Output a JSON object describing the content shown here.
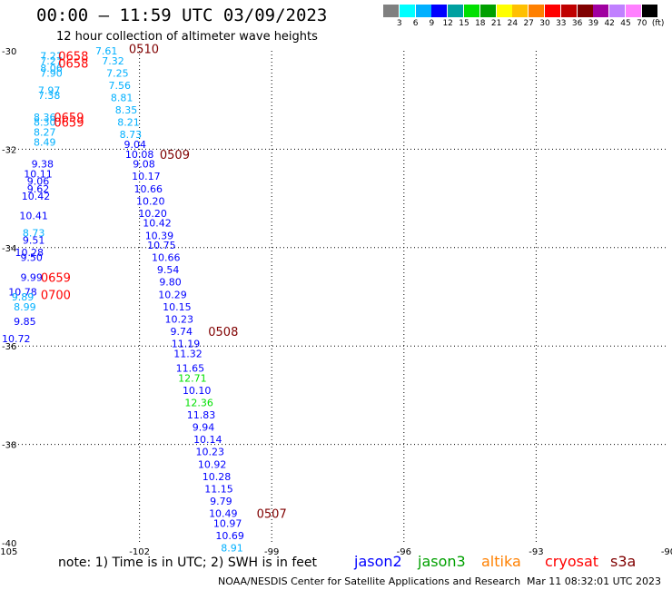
{
  "header": {
    "title": "00:00 – 11:59 UTC 03/09/2023",
    "subtitle": "12 hour collection of altimeter wave heights"
  },
  "legend": {
    "colors": [
      "#808080",
      "#00ffff",
      "#00b0ff",
      "#0000ff",
      "#00a0a0",
      "#00e000",
      "#00a000",
      "#ffff00",
      "#ffc000",
      "#ff8000",
      "#ff0000",
      "#c00000",
      "#800000",
      "#a000a0",
      "#c080ff",
      "#ff80ff",
      "#000000"
    ],
    "labels": [
      "3",
      "6",
      "9",
      "12",
      "15",
      "18",
      "21",
      "24",
      "27",
      "30",
      "33",
      "36",
      "39",
      "42",
      "45",
      "70",
      "(ft)"
    ]
  },
  "note": "note: 1) Time is in UTC; 2) SWH is in feet",
  "satellites": [
    {
      "name": "jason2",
      "color": "#0000ff"
    },
    {
      "name": "jason3",
      "color": "#00a000"
    },
    {
      "name": "altika",
      "color": "#ff8000"
    },
    {
      "name": "cryosat",
      "color": "#ff0000"
    },
    {
      "name": "s3a",
      "color": "#800000"
    }
  ],
  "footer": {
    "credit": "NOAA/NESDIS Center for Satellite Applications and Research",
    "timestamp": "Mar 11 08:32:01 UTC 2023"
  },
  "chart_data": {
    "type": "scatter",
    "xlim": [
      -105,
      -90
    ],
    "ylim": [
      -40,
      -30
    ],
    "x_ticks": [
      "-105",
      "-102",
      "-99",
      "-96",
      "-93",
      "-90"
    ],
    "y_ticks": [
      "-30",
      "-32",
      "-34",
      "-36",
      "-38",
      "-40"
    ],
    "grid": true,
    "points": [
      {
        "x": -104.0,
        "y": -30.1,
        "label": "7.21",
        "color": "#00b0ff"
      },
      {
        "x": -104.0,
        "y": -30.2,
        "label": "7.27",
        "color": "#00b0ff"
      },
      {
        "x": -104.0,
        "y": -30.35,
        "label": "8.06",
        "color": "#00b0ff"
      },
      {
        "x": -104.0,
        "y": -30.45,
        "label": "7.90",
        "color": "#00b0ff"
      },
      {
        "x": -104.05,
        "y": -30.8,
        "label": "7.97",
        "color": "#00b0ff"
      },
      {
        "x": -104.05,
        "y": -30.9,
        "label": "7.38",
        "color": "#00b0ff"
      },
      {
        "x": -104.15,
        "y": -31.35,
        "label": "8.36",
        "color": "#00b0ff"
      },
      {
        "x": -104.15,
        "y": -31.45,
        "label": "8.30",
        "color": "#00b0ff"
      },
      {
        "x": -104.15,
        "y": -31.65,
        "label": "8.27",
        "color": "#00b0ff"
      },
      {
        "x": -104.15,
        "y": -31.85,
        "label": "8.49",
        "color": "#00b0ff"
      },
      {
        "x": -104.2,
        "y": -32.3,
        "label": "9.38",
        "color": "#0000ff"
      },
      {
        "x": -104.3,
        "y": -32.5,
        "label": "10.11",
        "color": "#0000ff"
      },
      {
        "x": -104.3,
        "y": -32.65,
        "label": "9.06",
        "color": "#0000ff"
      },
      {
        "x": -104.3,
        "y": -32.8,
        "label": "9.62",
        "color": "#0000ff"
      },
      {
        "x": -104.35,
        "y": -32.95,
        "label": "10.42",
        "color": "#0000ff"
      },
      {
        "x": -104.4,
        "y": -33.35,
        "label": "10.41",
        "color": "#0000ff"
      },
      {
        "x": -104.4,
        "y": -33.7,
        "label": "8.73",
        "color": "#00b0ff"
      },
      {
        "x": -104.4,
        "y": -33.85,
        "label": "9.51",
        "color": "#0000ff"
      },
      {
        "x": -104.5,
        "y": -34.1,
        "label": "10.28",
        "color": "#0000ff"
      },
      {
        "x": -104.45,
        "y": -34.2,
        "label": "9.50",
        "color": "#0000ff"
      },
      {
        "x": -104.45,
        "y": -34.6,
        "label": "9.99",
        "color": "#0000ff"
      },
      {
        "x": -104.65,
        "y": -34.9,
        "label": "10.78",
        "color": "#0000ff"
      },
      {
        "x": -104.65,
        "y": -35.0,
        "label": "9.89",
        "color": "#00b0ff"
      },
      {
        "x": -104.6,
        "y": -35.2,
        "label": "8.99",
        "color": "#00b0ff"
      },
      {
        "x": -104.6,
        "y": -35.5,
        "label": "9.85",
        "color": "#0000ff"
      },
      {
        "x": -104.8,
        "y": -35.85,
        "label": "10.72",
        "color": "#0000ff"
      },
      {
        "x": -102.75,
        "y": -30.0,
        "label": "7.61",
        "color": "#00b0ff"
      },
      {
        "x": -102.6,
        "y": -30.2,
        "label": "7.32",
        "color": "#00b0ff"
      },
      {
        "x": -102.5,
        "y": -30.45,
        "label": "7.25",
        "color": "#00b0ff"
      },
      {
        "x": -102.45,
        "y": -30.7,
        "label": "7.56",
        "color": "#00b0ff"
      },
      {
        "x": -102.4,
        "y": -30.95,
        "label": "8.81",
        "color": "#00b0ff"
      },
      {
        "x": -102.3,
        "y": -31.2,
        "label": "8.35",
        "color": "#00b0ff"
      },
      {
        "x": -102.25,
        "y": -31.45,
        "label": "8.21",
        "color": "#00b0ff"
      },
      {
        "x": -102.2,
        "y": -31.7,
        "label": "8.73",
        "color": "#00b0ff"
      },
      {
        "x": -102.1,
        "y": -31.9,
        "label": "9.04",
        "color": "#0000ff"
      },
      {
        "x": -102.0,
        "y": -32.1,
        "label": "10.08",
        "color": "#0000ff"
      },
      {
        "x": -101.9,
        "y": -32.3,
        "label": "9.08",
        "color": "#0000ff"
      },
      {
        "x": -101.85,
        "y": -32.55,
        "label": "10.17",
        "color": "#0000ff"
      },
      {
        "x": -101.8,
        "y": -32.8,
        "label": "10.66",
        "color": "#0000ff"
      },
      {
        "x": -101.75,
        "y": -33.05,
        "label": "10.20",
        "color": "#0000ff"
      },
      {
        "x": -101.7,
        "y": -33.3,
        "label": "10.20",
        "color": "#0000ff"
      },
      {
        "x": -101.6,
        "y": -33.5,
        "label": "10.42",
        "color": "#0000ff"
      },
      {
        "x": -101.55,
        "y": -33.75,
        "label": "10.39",
        "color": "#0000ff"
      },
      {
        "x": -101.5,
        "y": -33.95,
        "label": "10.75",
        "color": "#0000ff"
      },
      {
        "x": -101.4,
        "y": -34.2,
        "label": "10.66",
        "color": "#0000ff"
      },
      {
        "x": -101.35,
        "y": -34.45,
        "label": "9.54",
        "color": "#0000ff"
      },
      {
        "x": -101.3,
        "y": -34.7,
        "label": "9.80",
        "color": "#0000ff"
      },
      {
        "x": -101.25,
        "y": -34.95,
        "label": "10.29",
        "color": "#0000ff"
      },
      {
        "x": -101.15,
        "y": -35.2,
        "label": "10.15",
        "color": "#0000ff"
      },
      {
        "x": -101.1,
        "y": -35.45,
        "label": "10.23",
        "color": "#0000ff"
      },
      {
        "x": -101.05,
        "y": -35.7,
        "label": "9.74",
        "color": "#0000ff"
      },
      {
        "x": -100.95,
        "y": -35.95,
        "label": "11.19",
        "color": "#0000ff"
      },
      {
        "x": -100.9,
        "y": -36.15,
        "label": "11.32",
        "color": "#0000ff"
      },
      {
        "x": -100.85,
        "y": -36.45,
        "label": "11.65",
        "color": "#0000ff"
      },
      {
        "x": -100.8,
        "y": -36.65,
        "label": "12.71",
        "color": "#00e000"
      },
      {
        "x": -100.7,
        "y": -36.9,
        "label": "10.10",
        "color": "#0000ff"
      },
      {
        "x": -100.65,
        "y": -37.15,
        "label": "12.36",
        "color": "#00e000"
      },
      {
        "x": -100.6,
        "y": -37.4,
        "label": "11.83",
        "color": "#0000ff"
      },
      {
        "x": -100.55,
        "y": -37.65,
        "label": "9.94",
        "color": "#0000ff"
      },
      {
        "x": -100.45,
        "y": -37.9,
        "label": "10.14",
        "color": "#0000ff"
      },
      {
        "x": -100.4,
        "y": -38.15,
        "label": "10.23",
        "color": "#0000ff"
      },
      {
        "x": -100.35,
        "y": -38.4,
        "label": "10.92",
        "color": "#0000ff"
      },
      {
        "x": -100.25,
        "y": -38.65,
        "label": "10.28",
        "color": "#0000ff"
      },
      {
        "x": -100.2,
        "y": -38.9,
        "label": "11.15",
        "color": "#0000ff"
      },
      {
        "x": -100.15,
        "y": -39.15,
        "label": "9.79",
        "color": "#0000ff"
      },
      {
        "x": -100.1,
        "y": -39.4,
        "label": "10.49",
        "color": "#0000ff"
      },
      {
        "x": -100.0,
        "y": -39.6,
        "label": "10.97",
        "color": "#0000ff"
      },
      {
        "x": -99.95,
        "y": -39.85,
        "label": "10.69",
        "color": "#0000ff"
      },
      {
        "x": -99.9,
        "y": -40.1,
        "label": "8.91",
        "color": "#00b0ff"
      }
    ],
    "time_labels": [
      {
        "x": -103.5,
        "y": -30.1,
        "label": "0658",
        "color": "#ff0000"
      },
      {
        "x": -103.5,
        "y": -30.25,
        "label": "0658",
        "color": "#ff0000"
      },
      {
        "x": -103.6,
        "y": -31.35,
        "label": "0659",
        "color": "#ff0000"
      },
      {
        "x": -103.6,
        "y": -31.45,
        "label": "0659",
        "color": "#ff0000"
      },
      {
        "x": -103.9,
        "y": -34.6,
        "label": "0659",
        "color": "#ff0000"
      },
      {
        "x": -103.9,
        "y": -34.95,
        "label": "0700",
        "color": "#ff0000"
      },
      {
        "x": -101.9,
        "y": -29.95,
        "label": "0510",
        "color": "#800000"
      },
      {
        "x": -101.2,
        "y": -32.1,
        "label": "0509",
        "color": "#800000"
      },
      {
        "x": -100.1,
        "y": -35.7,
        "label": "0508",
        "color": "#800000"
      },
      {
        "x": -99.0,
        "y": -39.4,
        "label": "0507",
        "color": "#800000"
      }
    ]
  }
}
